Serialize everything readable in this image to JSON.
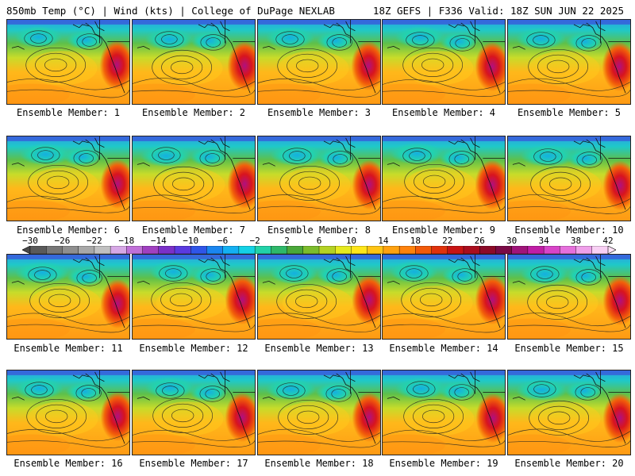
{
  "header": {
    "left": "850mb Temp (°C) | Wind (kts) | College of DuPage NEXLAB",
    "right": "18Z GEFS | F336 Valid: 18Z SUN JUN 22 2025"
  },
  "members": [
    {
      "label": "Ensemble Member: 1"
    },
    {
      "label": "Ensemble Member: 2"
    },
    {
      "label": "Ensemble Member: 3"
    },
    {
      "label": "Ensemble Member: 4"
    },
    {
      "label": "Ensemble Member: 5"
    },
    {
      "label": "Ensemble Member: 6"
    },
    {
      "label": "Ensemble Member: 7"
    },
    {
      "label": "Ensemble Member: 8"
    },
    {
      "label": "Ensemble Member: 9"
    },
    {
      "label": "Ensemble Member: 10"
    },
    {
      "label": "Ensemble Member: 11"
    },
    {
      "label": "Ensemble Member: 12"
    },
    {
      "label": "Ensemble Member: 13"
    },
    {
      "label": "Ensemble Member: 14"
    },
    {
      "label": "Ensemble Member: 15"
    },
    {
      "label": "Ensemble Member: 16"
    },
    {
      "label": "Ensemble Member: 17"
    },
    {
      "label": "Ensemble Member: 18"
    },
    {
      "label": "Ensemble Member: 19"
    },
    {
      "label": "Ensemble Member: 20"
    }
  ],
  "colorbar": {
    "tick_labels": [
      "−30",
      "−26",
      "−22",
      "−18",
      "−14",
      "−10",
      "−6",
      "−2",
      "2",
      "6",
      "10",
      "14",
      "18",
      "22",
      "26",
      "30",
      "34",
      "38",
      "42"
    ],
    "colors": [
      "#5a5a5a",
      "#777777",
      "#8f8f8f",
      "#a8a8a8",
      "#c0c0c0",
      "#d7a8e6",
      "#c070d8",
      "#a040c0",
      "#7a30c8",
      "#5a3ae0",
      "#2f55e8",
      "#1a86f0",
      "#14b0f2",
      "#14d2e6",
      "#22d2a8",
      "#2eb86a",
      "#4aa83a",
      "#7cbc2c",
      "#b4d224",
      "#e6ea20",
      "#ffe61a",
      "#ffc414",
      "#ffa210",
      "#ff820c",
      "#f25a0a",
      "#e0320c",
      "#c81414",
      "#aa0e1e",
      "#8c0a28",
      "#7a0a46",
      "#a0147a",
      "#c01ea6",
      "#d844c8",
      "#e670dc",
      "#f0a0ea",
      "#f8d0f4"
    ]
  }
}
